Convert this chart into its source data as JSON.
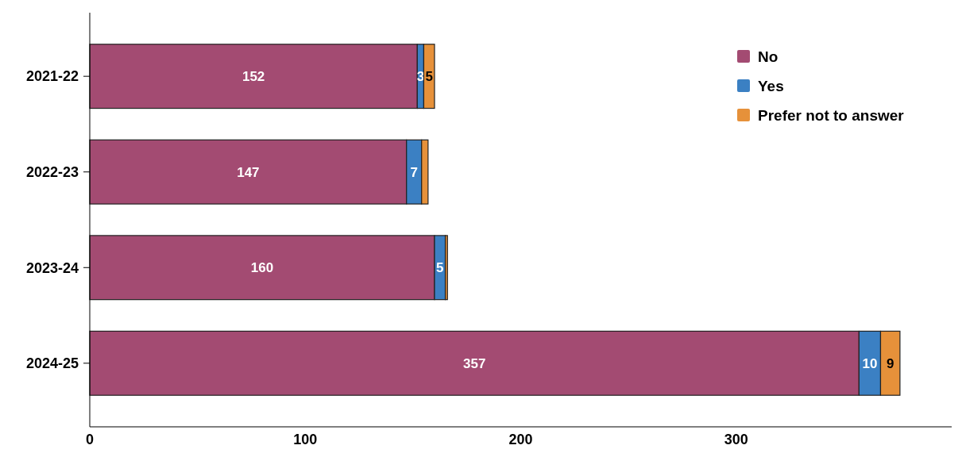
{
  "chart_data": {
    "type": "bar",
    "orientation": "horizontal",
    "stacked": true,
    "categories": [
      "2021-22",
      "2022-23",
      "2023-24",
      "2024-25"
    ],
    "series": [
      {
        "name": "No",
        "color": "#a34b72",
        "values": [
          152,
          147,
          160,
          357
        ],
        "value_labels": [
          "152",
          "147",
          "160",
          "357"
        ]
      },
      {
        "name": "Yes",
        "color": "#3b80c3",
        "values": [
          3,
          7,
          5,
          10
        ],
        "value_labels": [
          "3",
          "7",
          "5",
          "10"
        ]
      },
      {
        "name": "Prefer not to answer",
        "color": "#e6913a",
        "values": [
          5,
          3,
          1,
          9
        ],
        "value_labels": [
          "5",
          null,
          null,
          "9"
        ]
      }
    ],
    "xlim": [
      0,
      400
    ],
    "xticks": [
      0,
      100,
      200,
      300
    ],
    "grid": false,
    "legend": "top right"
  }
}
